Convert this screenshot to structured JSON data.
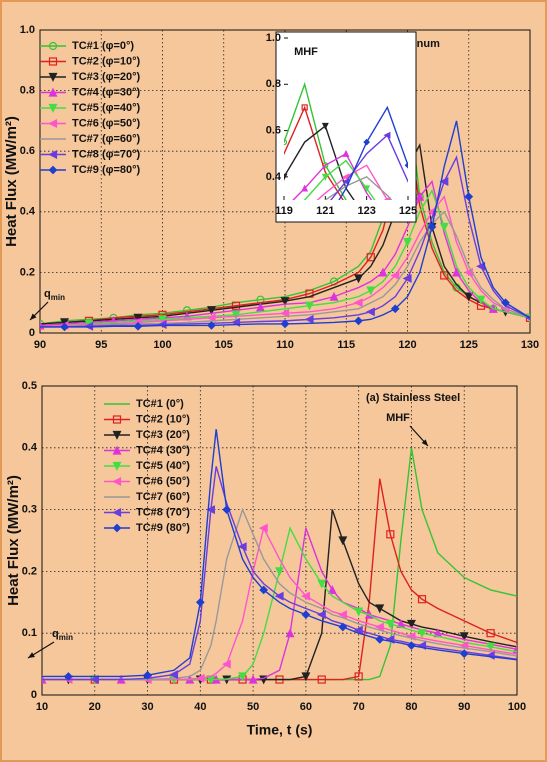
{
  "chart_data": [
    {
      "type": "line",
      "y_label": "Heat Flux (MW/m²)",
      "x": [
        90,
        92,
        94,
        96,
        98,
        100,
        102,
        104,
        106,
        108,
        110,
        112,
        114,
        116,
        117,
        118,
        119,
        120,
        121,
        122,
        123,
        124,
        125,
        126,
        127,
        128,
        130
      ],
      "xlim": [
        90,
        130
      ],
      "xticks": [
        90,
        95,
        100,
        105,
        110,
        115,
        120,
        125,
        130
      ],
      "ylim": [
        0,
        1
      ],
      "yticks": [
        0,
        0.2,
        0.4,
        0.6,
        0.8,
        {
          "value": 1,
          "label": "1.0"
        }
      ],
      "grid": true,
      "legend": "upper left",
      "annotations": [
        {
          "text": "(a) Aluminum"
        },
        {
          "text": "q",
          "subscript": "min"
        }
      ],
      "inset": {
        "title": "MHF",
        "xlim": [
          119,
          125
        ],
        "xticks": [
          119,
          121,
          123,
          125
        ],
        "ylim": [
          0.3,
          1
        ],
        "yticks": [
          0.4,
          0.6,
          0.8,
          {
            "value": 1,
            "label": "1.0"
          }
        ]
      },
      "series": [
        {
          "name": "TC#1 (φ=0°)",
          "color": "#35c435",
          "marker": "circle",
          "values": [
            0.03,
            0.04,
            0.045,
            0.05,
            0.06,
            0.065,
            0.075,
            0.085,
            0.1,
            0.11,
            0.12,
            0.14,
            0.17,
            0.22,
            0.27,
            0.38,
            0.55,
            0.8,
            0.45,
            0.3,
            0.2,
            0.15,
            0.12,
            0.1,
            0.08,
            0.07,
            0.05
          ]
        },
        {
          "name": "TC#2 (φ=10°)",
          "color": "#e02020",
          "marker": "square",
          "values": [
            0.03,
            0.035,
            0.04,
            0.05,
            0.055,
            0.06,
            0.07,
            0.08,
            0.09,
            0.1,
            0.11,
            0.13,
            0.16,
            0.2,
            0.25,
            0.34,
            0.5,
            0.7,
            0.42,
            0.28,
            0.19,
            0.14,
            0.11,
            0.09,
            0.08,
            0.07,
            0.05
          ]
        },
        {
          "name": "TC#3 (φ=20°)",
          "color": "#222222",
          "marker": "tri-down",
          "values": [
            0.03,
            0.035,
            0.04,
            0.045,
            0.05,
            0.055,
            0.065,
            0.075,
            0.085,
            0.095,
            0.105,
            0.12,
            0.15,
            0.18,
            0.22,
            0.29,
            0.4,
            0.55,
            0.62,
            0.35,
            0.22,
            0.16,
            0.12,
            0.1,
            0.08,
            0.07,
            0.05
          ]
        },
        {
          "name": "TC#4 (φ=30°)",
          "color": "#dd33dd",
          "marker": "tri-up",
          "values": [
            0.025,
            0.03,
            0.035,
            0.04,
            0.045,
            0.05,
            0.055,
            0.065,
            0.075,
            0.085,
            0.095,
            0.1,
            0.12,
            0.15,
            0.17,
            0.2,
            0.26,
            0.35,
            0.45,
            0.5,
            0.33,
            0.2,
            0.14,
            0.1,
            0.08,
            0.07,
            0.05
          ]
        },
        {
          "name": "TC#5 (φ=40°)",
          "color": "#44dd44",
          "marker": "tri-down",
          "values": [
            0.02,
            0.025,
            0.03,
            0.035,
            0.04,
            0.045,
            0.05,
            0.055,
            0.06,
            0.07,
            0.08,
            0.09,
            0.1,
            0.12,
            0.14,
            0.17,
            0.22,
            0.3,
            0.4,
            0.47,
            0.35,
            0.22,
            0.15,
            0.11,
            0.08,
            0.07,
            0.05
          ]
        },
        {
          "name": "TC#6 (φ=50°)",
          "color": "#ff55cc",
          "marker": "tri-left",
          "values": [
            0.02,
            0.025,
            0.028,
            0.03,
            0.035,
            0.04,
            0.045,
            0.05,
            0.055,
            0.06,
            0.065,
            0.07,
            0.08,
            0.1,
            0.12,
            0.15,
            0.19,
            0.25,
            0.33,
            0.4,
            0.45,
            0.3,
            0.2,
            0.14,
            0.1,
            0.08,
            0.05
          ]
        },
        {
          "name": "TC#7 (φ=60°)",
          "color": "#999999",
          "marker": "none",
          "values": [
            0.02,
            0.022,
            0.025,
            0.028,
            0.03,
            0.032,
            0.035,
            0.04,
            0.045,
            0.05,
            0.055,
            0.06,
            0.07,
            0.08,
            0.1,
            0.12,
            0.16,
            0.22,
            0.3,
            0.36,
            0.4,
            0.32,
            0.22,
            0.15,
            0.11,
            0.08,
            0.05
          ]
        },
        {
          "name": "TC#8 (φ=70°)",
          "color": "#6a3de0",
          "marker": "tri-left",
          "values": [
            0.02,
            0.02,
            0.022,
            0.025,
            0.025,
            0.028,
            0.03,
            0.032,
            0.035,
            0.038,
            0.04,
            0.045,
            0.05,
            0.06,
            0.07,
            0.09,
            0.12,
            0.18,
            0.27,
            0.38,
            0.5,
            0.58,
            0.38,
            0.22,
            0.14,
            0.09,
            0.05
          ]
        },
        {
          "name": "TC#9 (φ=80°)",
          "color": "#1f3fd0",
          "marker": "diamond",
          "values": [
            0.02,
            0.02,
            0.02,
            0.022,
            0.022,
            0.025,
            0.025,
            0.025,
            0.028,
            0.03,
            0.03,
            0.032,
            0.035,
            0.04,
            0.045,
            0.06,
            0.08,
            0.12,
            0.2,
            0.35,
            0.55,
            0.7,
            0.45,
            0.25,
            0.15,
            0.1,
            0.05
          ]
        }
      ]
    },
    {
      "type": "line",
      "y_label": "Heat Flux (MW/m²)",
      "x_label": "Time, t (s)",
      "x": [
        10,
        15,
        20,
        25,
        30,
        35,
        38,
        40,
        42,
        43,
        45,
        48,
        50,
        52,
        55,
        57,
        60,
        63,
        65,
        67,
        70,
        72,
        74,
        76,
        78,
        80,
        82,
        85,
        90,
        95,
        100
      ],
      "xlim": [
        10,
        100
      ],
      "xticks": [
        10,
        20,
        30,
        40,
        50,
        60,
        70,
        80,
        90,
        100
      ],
      "ylim": [
        0,
        0.5
      ],
      "yticks": [
        0,
        0.1,
        0.2,
        0.3,
        0.4,
        0.5
      ],
      "grid": true,
      "legend": "upper left",
      "annotations": [
        {
          "text": "(a) Stainless Steel"
        },
        {
          "text": "q",
          "subscript": "min"
        },
        {
          "text": "MHF"
        }
      ],
      "series": [
        {
          "name": "TC#1 (0°)",
          "color": "#35c435",
          "marker": "none",
          "values": [
            0.025,
            0.025,
            0.025,
            0.025,
            0.025,
            0.025,
            0.025,
            0.025,
            0.025,
            0.025,
            0.025,
            0.025,
            0.025,
            0.025,
            0.025,
            0.025,
            0.025,
            0.025,
            0.025,
            0.025,
            0.025,
            0.025,
            0.03,
            0.08,
            0.25,
            0.4,
            0.3,
            0.23,
            0.19,
            0.17,
            0.16
          ]
        },
        {
          "name": "TC#2 (10°)",
          "color": "#e02020",
          "marker": "square",
          "values": [
            0.025,
            0.025,
            0.025,
            0.025,
            0.025,
            0.025,
            0.025,
            0.025,
            0.025,
            0.025,
            0.025,
            0.025,
            0.025,
            0.025,
            0.025,
            0.025,
            0.025,
            0.025,
            0.025,
            0.025,
            0.03,
            0.15,
            0.35,
            0.26,
            0.2,
            0.17,
            0.155,
            0.14,
            0.12,
            0.1,
            0.085
          ]
        },
        {
          "name": "TC#3 (20°)",
          "color": "#222222",
          "marker": "tri-down",
          "values": [
            0.025,
            0.025,
            0.025,
            0.025,
            0.025,
            0.025,
            0.025,
            0.025,
            0.025,
            0.025,
            0.025,
            0.025,
            0.025,
            0.025,
            0.025,
            0.025,
            0.03,
            0.1,
            0.3,
            0.25,
            0.18,
            0.15,
            0.14,
            0.13,
            0.12,
            0.115,
            0.11,
            0.105,
            0.095,
            0.086,
            0.078
          ]
        },
        {
          "name": "TC#4 (30°)",
          "color": "#dd33dd",
          "marker": "tri-up",
          "values": [
            0.025,
            0.025,
            0.025,
            0.025,
            0.025,
            0.025,
            0.025,
            0.025,
            0.025,
            0.025,
            0.025,
            0.025,
            0.025,
            0.027,
            0.04,
            0.1,
            0.27,
            0.2,
            0.17,
            0.15,
            0.14,
            0.13,
            0.125,
            0.12,
            0.115,
            0.11,
            0.105,
            0.1,
            0.09,
            0.082,
            0.074
          ]
        },
        {
          "name": "TC#5 (40°)",
          "color": "#44dd44",
          "marker": "tri-down",
          "values": [
            0.025,
            0.025,
            0.025,
            0.025,
            0.025,
            0.025,
            0.025,
            0.025,
            0.025,
            0.025,
            0.026,
            0.03,
            0.05,
            0.1,
            0.2,
            0.27,
            0.22,
            0.18,
            0.16,
            0.15,
            0.135,
            0.13,
            0.12,
            0.115,
            0.11,
            0.105,
            0.1,
            0.095,
            0.085,
            0.078,
            0.07
          ]
        },
        {
          "name": "TC#6 (50°)",
          "color": "#ff55cc",
          "marker": "tri-left",
          "values": [
            0.025,
            0.025,
            0.025,
            0.025,
            0.025,
            0.025,
            0.026,
            0.027,
            0.03,
            0.035,
            0.05,
            0.12,
            0.2,
            0.27,
            0.22,
            0.19,
            0.16,
            0.145,
            0.135,
            0.13,
            0.12,
            0.115,
            0.11,
            0.105,
            0.1,
            0.095,
            0.092,
            0.087,
            0.08,
            0.073,
            0.066
          ]
        },
        {
          "name": "TC#7 (60°)",
          "color": "#999999",
          "marker": "none",
          "values": [
            0.025,
            0.025,
            0.025,
            0.025,
            0.025,
            0.027,
            0.03,
            0.04,
            0.08,
            0.12,
            0.22,
            0.3,
            0.26,
            0.22,
            0.18,
            0.165,
            0.15,
            0.14,
            0.13,
            0.125,
            0.115,
            0.11,
            0.105,
            0.1,
            0.096,
            0.092,
            0.088,
            0.083,
            0.076,
            0.07,
            0.063
          ]
        },
        {
          "name": "TC#8 (70°)",
          "color": "#6a3de0",
          "marker": "tri-left",
          "values": [
            0.025,
            0.025,
            0.025,
            0.025,
            0.027,
            0.033,
            0.05,
            0.12,
            0.3,
            0.37,
            0.31,
            0.24,
            0.2,
            0.18,
            0.16,
            0.15,
            0.14,
            0.13,
            0.12,
            0.115,
            0.105,
            0.1,
            0.095,
            0.09,
            0.087,
            0.083,
            0.08,
            0.076,
            0.07,
            0.064,
            0.058
          ]
        },
        {
          "name": "TC#9 (80°)",
          "color": "#1f3fd0",
          "marker": "diamond",
          "values": [
            0.03,
            0.03,
            0.03,
            0.03,
            0.032,
            0.04,
            0.06,
            0.15,
            0.35,
            0.43,
            0.3,
            0.22,
            0.19,
            0.17,
            0.15,
            0.14,
            0.13,
            0.12,
            0.115,
            0.11,
            0.1,
            0.095,
            0.09,
            0.087,
            0.084,
            0.08,
            0.077,
            0.073,
            0.067,
            0.062,
            0.057
          ]
        }
      ]
    }
  ]
}
